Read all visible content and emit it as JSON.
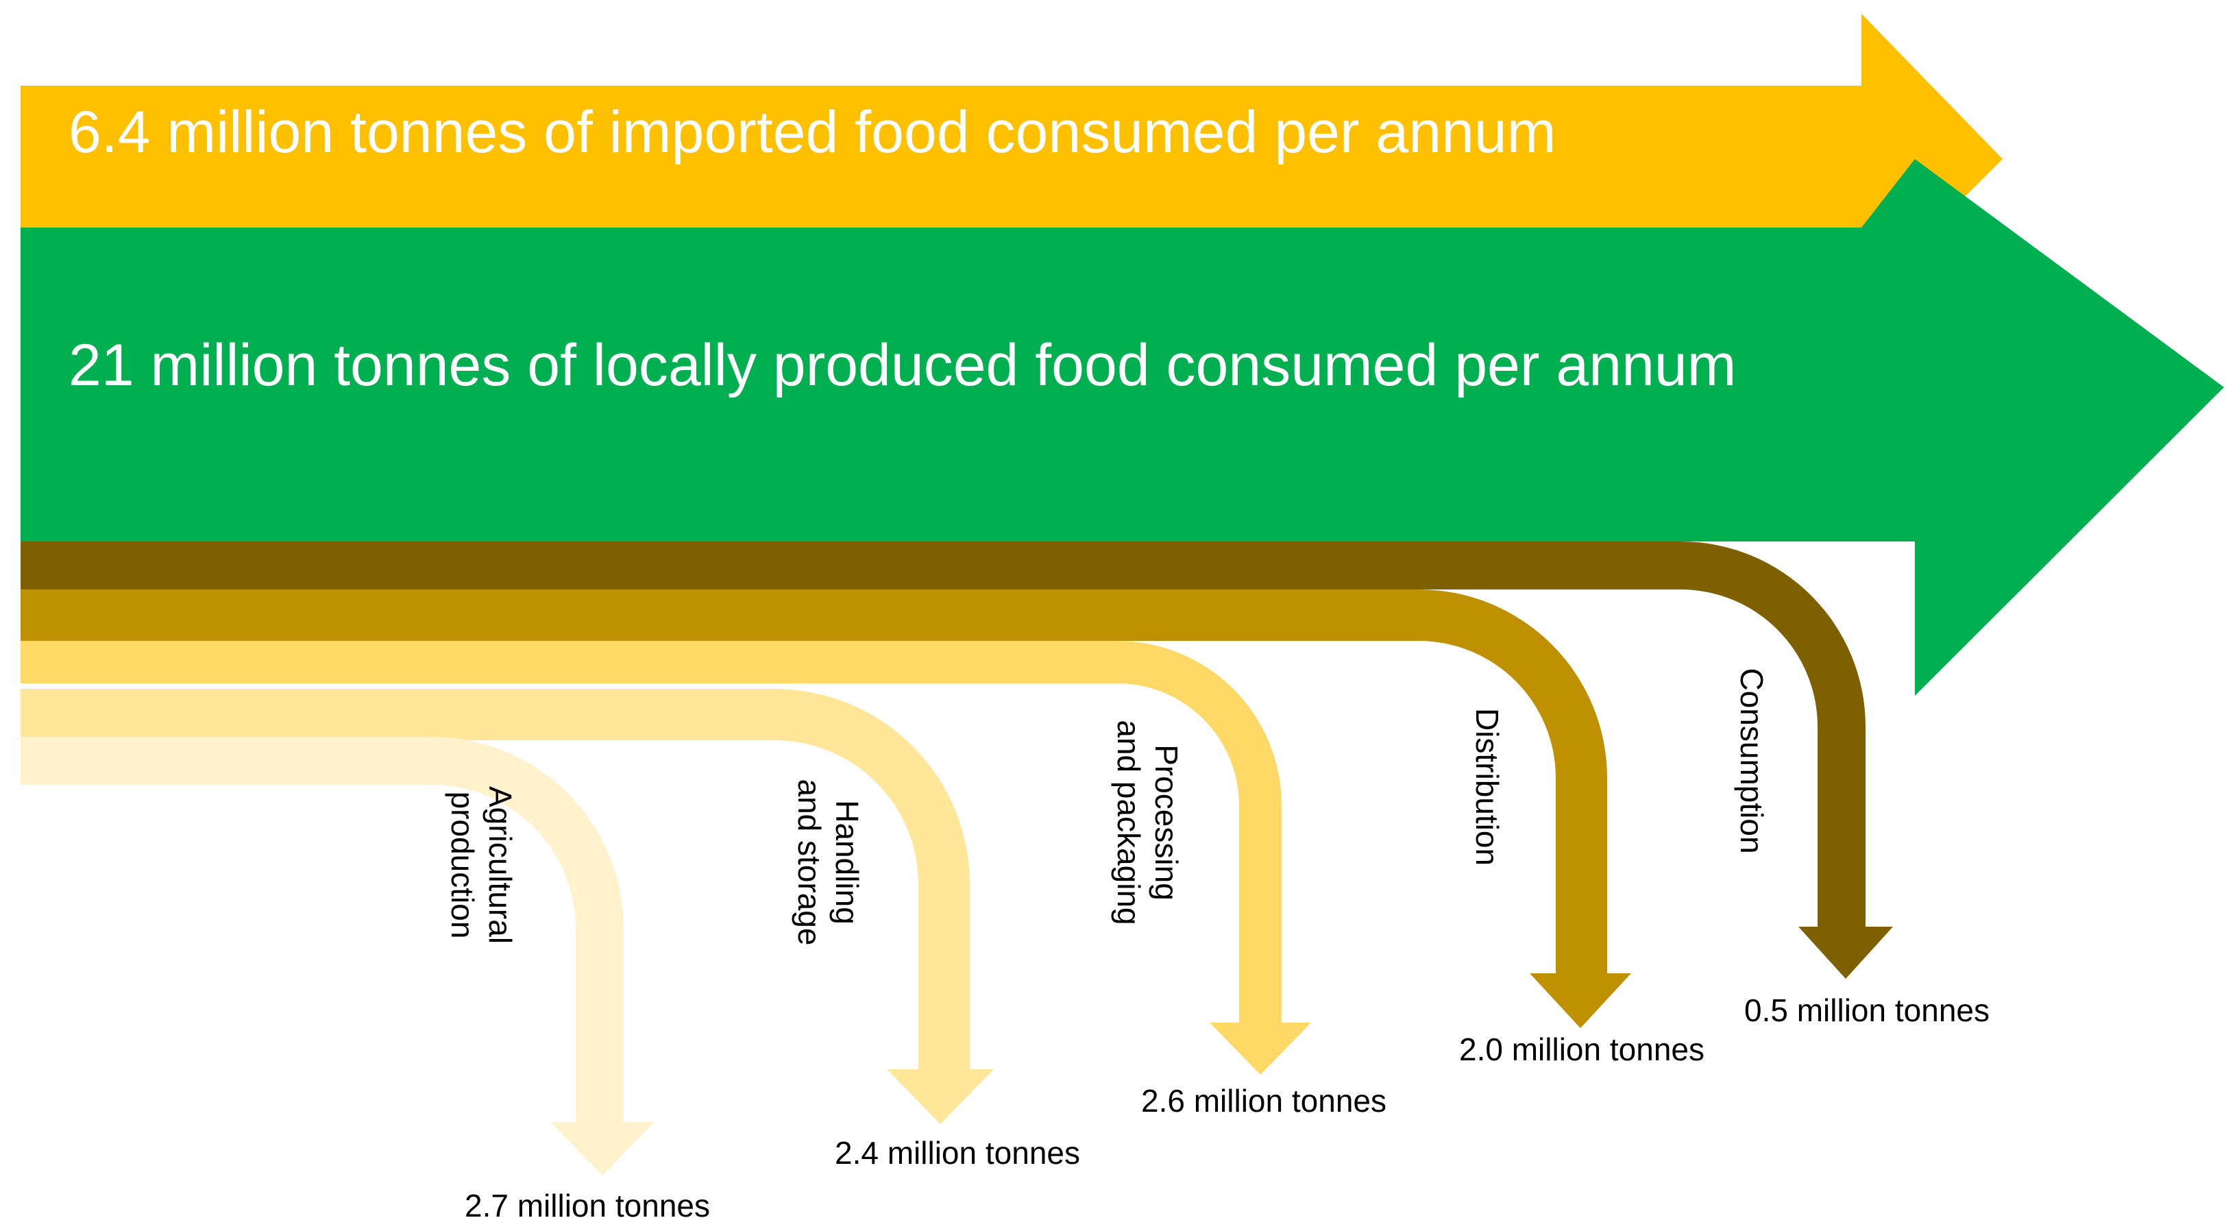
{
  "flows": {
    "imported": {
      "label": "6.4 million tonnes of imported food consumed per annum",
      "value_million_tonnes": 6.4,
      "color": "#FFC000"
    },
    "local": {
      "label": "21 million tonnes of locally produced food consumed per annum",
      "value_million_tonnes": 21,
      "color": "#00B050"
    }
  },
  "losses": [
    {
      "stage_lines": [
        "Agricultural",
        "production"
      ],
      "amount_label": "2.7 million tonnes",
      "value_million_tonnes": 2.7,
      "color": "#FFF2CC"
    },
    {
      "stage_lines": [
        "Handling",
        "and storage"
      ],
      "amount_label": "2.4 million tonnes",
      "value_million_tonnes": 2.4,
      "color": "#FFE699"
    },
    {
      "stage_lines": [
        "Processing",
        "and packaging"
      ],
      "amount_label": "2.6 million tonnes",
      "value_million_tonnes": 2.6,
      "color": "#FFD966"
    },
    {
      "stage_lines": [
        "Distribution"
      ],
      "amount_label": "2.0 million tonnes",
      "value_million_tonnes": 2.0,
      "color": "#BF9000"
    },
    {
      "stage_lines": [
        "Consumption"
      ],
      "amount_label": "0.5 million tonnes",
      "value_million_tonnes": 0.5,
      "color": "#7F6000"
    }
  ]
}
